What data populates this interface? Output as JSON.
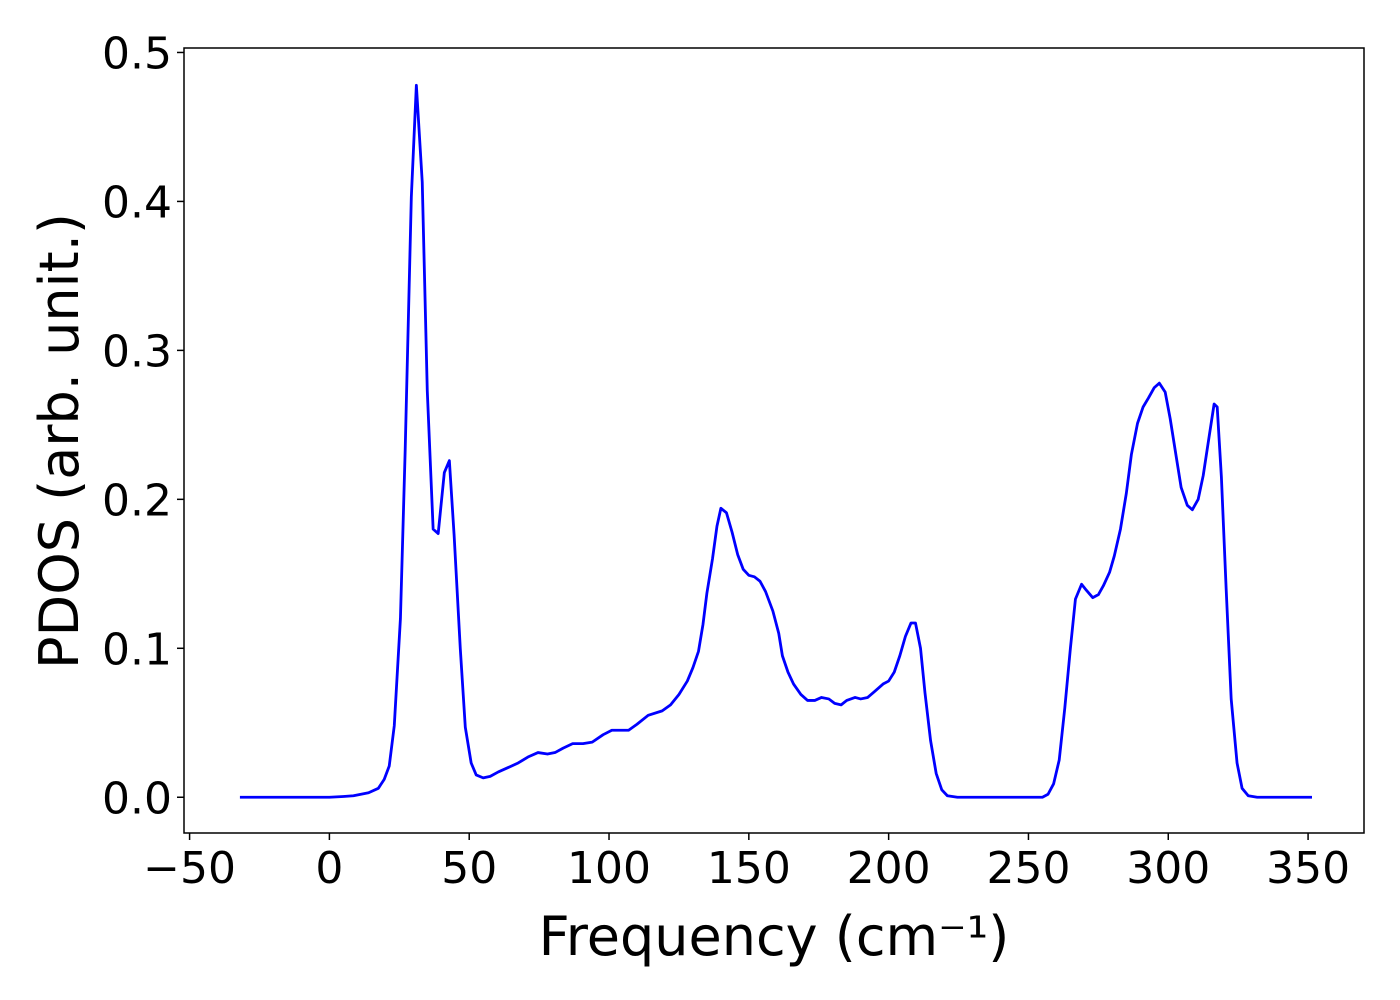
{
  "chart_data": {
    "type": "line",
    "xlabel": "Frequency (cm⁻¹)",
    "ylabel": "PDOS (arb. unit.)",
    "x": [
      -32,
      -20,
      -10,
      0,
      5,
      8.6,
      14,
      17.5,
      19.6,
      21.4,
      23.2,
      25.4,
      27.1,
      29.3,
      31.1,
      33.2,
      35,
      37.1,
      38.9,
      41.1,
      42.9,
      44.6,
      46.8,
      48.6,
      50.7,
      52.5,
      55,
      57.5,
      60.4,
      64,
      67.5,
      71,
      74.6,
      78,
      80.7,
      83.6,
      87,
      90.7,
      94,
      97.9,
      101,
      107,
      110,
      114,
      119,
      122,
      125,
      128,
      130,
      132,
      133.6,
      135,
      137,
      138.6,
      140,
      142,
      144,
      146,
      148,
      150,
      152,
      154,
      156,
      158.6,
      160.7,
      162,
      164,
      166,
      168.6,
      171,
      173.6,
      176,
      178.6,
      180.7,
      183,
      185,
      188,
      190,
      192.5,
      195,
      198,
      200,
      202,
      204,
      206,
      208,
      209.6,
      211.4,
      213,
      215,
      217,
      219,
      221,
      224.6,
      255,
      257,
      259,
      261,
      263,
      265,
      266.8,
      269,
      270.7,
      273,
      275,
      276.8,
      279,
      280.7,
      282.9,
      285,
      286.8,
      289,
      291,
      292.9,
      295,
      296.8,
      298.9,
      300.7,
      302.9,
      304.6,
      306.8,
      308.6,
      310.7,
      312.5,
      314.6,
      316.4,
      317.5,
      319,
      320.7,
      322.5,
      324.6,
      326.4,
      328.6,
      331.8,
      351.4
    ],
    "series": [
      {
        "color": "#0000ff",
        "values": [
          0,
          0,
          0,
          0,
          0.0005,
          0.001,
          0.003,
          0.006,
          0.012,
          0.021,
          0.048,
          0.12,
          0.233,
          0.403,
          0.478,
          0.413,
          0.273,
          0.18,
          0.177,
          0.218,
          0.226,
          0.176,
          0.1,
          0.047,
          0.023,
          0.015,
          0.013,
          0.014,
          0.017,
          0.02,
          0.023,
          0.027,
          0.03,
          0.029,
          0.03,
          0.033,
          0.036,
          0.036,
          0.037,
          0.042,
          0.045,
          0.045,
          0.049,
          0.055,
          0.058,
          0.062,
          0.069,
          0.078,
          0.087,
          0.098,
          0.116,
          0.137,
          0.16,
          0.182,
          0.194,
          0.191,
          0.178,
          0.163,
          0.153,
          0.149,
          0.148,
          0.145,
          0.138,
          0.125,
          0.11,
          0.095,
          0.084,
          0.076,
          0.069,
          0.065,
          0.065,
          0.067,
          0.066,
          0.063,
          0.062,
          0.065,
          0.067,
          0.066,
          0.067,
          0.071,
          0.076,
          0.078,
          0.084,
          0.095,
          0.108,
          0.117,
          0.117,
          0.1,
          0.07,
          0.038,
          0.016,
          0.005,
          0.001,
          0,
          0,
          0.002,
          0.009,
          0.025,
          0.06,
          0.1,
          0.133,
          0.143,
          0.139,
          0.134,
          0.136,
          0.142,
          0.151,
          0.162,
          0.18,
          0.204,
          0.23,
          0.251,
          0.262,
          0.268,
          0.275,
          0.278,
          0.272,
          0.254,
          0.228,
          0.208,
          0.196,
          0.193,
          0.2,
          0.216,
          0.242,
          0.264,
          0.262,
          0.215,
          0.14,
          0.066,
          0.023,
          0.006,
          0.001,
          0,
          0
        ]
      }
    ],
    "xlim": [
      -52,
      370
    ],
    "ylim": [
      -0.024,
      0.503
    ],
    "xticks": [
      {
        "value": -50,
        "label": "−50"
      },
      0,
      50,
      100,
      150,
      200,
      250,
      300,
      350
    ],
    "yticks": [
      {
        "value": 0,
        "label": "0.0"
      },
      0.1,
      0.2,
      0.3,
      0.4,
      0.5
    ],
    "grid": false
  }
}
